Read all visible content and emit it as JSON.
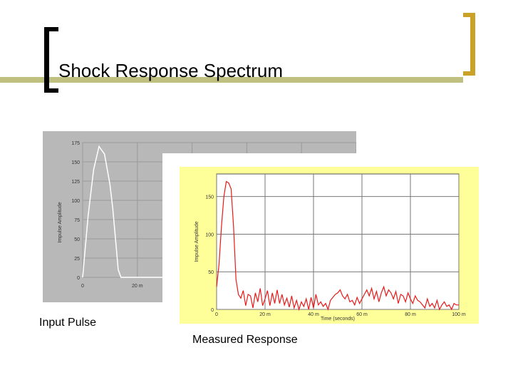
{
  "slide": {
    "title": "Shock Response Spectrum",
    "caption_input": "Input Pulse",
    "caption_measured": "Measured Response",
    "accent_olive": "#bfbf80",
    "accent_gold": "#c9a227"
  },
  "chart_data": [
    {
      "type": "line",
      "name": "input-pulse-plot",
      "ylabel": "Impulse Amplitude",
      "xlabel": "",
      "xlim": [
        0,
        100
      ],
      "ylim": [
        0,
        175
      ],
      "x_ticks": [
        "0",
        "20 m"
      ],
      "y_ticks": [
        "0",
        "25",
        "50",
        "75",
        "100",
        "125",
        "150",
        "175"
      ],
      "series": [
        {
          "x": [
            0,
            2,
            4,
            6,
            8,
            10,
            11,
            12,
            13,
            14,
            100
          ],
          "y": [
            0,
            80,
            140,
            170,
            160,
            120,
            90,
            50,
            10,
            0,
            0
          ]
        }
      ],
      "line_color": "#ffffff",
      "background": "#b8b8b8"
    },
    {
      "type": "line",
      "name": "measured-response-plot",
      "ylabel": "Impulse Amplitude",
      "xlabel": "Time (seconds)",
      "xlim": [
        0,
        100
      ],
      "ylim": [
        0,
        180
      ],
      "x_ticks": [
        "0",
        "20 m",
        "40 m",
        "60 m",
        "80 m",
        "100 m"
      ],
      "y_ticks": [
        "0",
        "50",
        "100",
        "150"
      ],
      "series": [
        {
          "x": [
            0,
            1,
            2,
            3,
            4,
            5,
            6,
            7,
            8,
            9,
            10,
            11,
            12,
            13,
            14,
            15,
            16,
            17,
            18,
            19,
            20,
            21,
            22,
            23,
            24,
            25,
            26,
            27,
            28,
            29,
            30,
            31,
            32,
            33,
            34,
            35,
            36,
            37,
            38,
            39,
            40,
            41,
            42,
            43,
            44,
            45,
            46,
            47,
            48,
            49,
            50,
            51,
            52,
            53,
            54,
            55,
            56,
            57,
            58,
            59,
            60,
            61,
            62,
            63,
            64,
            65,
            66,
            67,
            68,
            69,
            70,
            71,
            72,
            73,
            74,
            75,
            76,
            77,
            78,
            79,
            80,
            81,
            82,
            83,
            84,
            85,
            86,
            87,
            88,
            89,
            90,
            91,
            92,
            93,
            94,
            95,
            96,
            97,
            98,
            99,
            100
          ],
          "y": [
            30,
            60,
            110,
            150,
            170,
            168,
            160,
            110,
            40,
            20,
            15,
            25,
            5,
            20,
            18,
            2,
            22,
            10,
            28,
            5,
            14,
            25,
            5,
            22,
            8,
            26,
            8,
            20,
            6,
            15,
            3,
            18,
            2,
            12,
            0,
            10,
            4,
            14,
            0,
            16,
            2,
            20,
            6,
            10,
            4,
            8,
            0,
            12,
            16,
            20,
            22,
            26,
            18,
            14,
            20,
            10,
            12,
            6,
            16,
            8,
            14,
            20,
            26,
            18,
            28,
            14,
            24,
            10,
            22,
            30,
            18,
            26,
            22,
            14,
            24,
            8,
            20,
            18,
            10,
            22,
            14,
            8,
            18,
            12,
            10,
            6,
            2,
            14,
            4,
            8,
            2,
            12,
            0,
            6,
            10,
            4,
            6,
            0,
            8,
            6,
            6
          ]
        }
      ],
      "line_color": "#e81a1a",
      "background": "#ffff99"
    }
  ]
}
